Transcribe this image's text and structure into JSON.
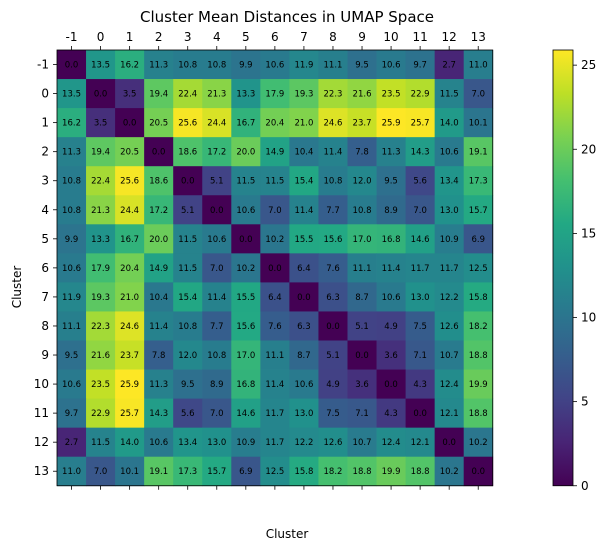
{
  "chart_data": {
    "type": "heatmap",
    "title": "Cluster Mean Distances in UMAP Space",
    "xlabel": "Cluster",
    "ylabel": "Cluster",
    "categories": [
      "-1",
      "0",
      "1",
      "2",
      "3",
      "4",
      "5",
      "6",
      "7",
      "8",
      "9",
      "10",
      "11",
      "12",
      "13"
    ],
    "values": [
      [
        0.0,
        13.5,
        16.2,
        11.3,
        10.8,
        10.8,
        9.9,
        10.6,
        11.9,
        11.1,
        9.5,
        10.6,
        9.7,
        2.7,
        11.0
      ],
      [
        13.5,
        0.0,
        3.5,
        19.4,
        22.4,
        21.3,
        13.3,
        17.9,
        19.3,
        22.3,
        21.6,
        23.5,
        22.9,
        11.5,
        7.0
      ],
      [
        16.2,
        3.5,
        0.0,
        20.5,
        25.6,
        24.4,
        16.7,
        20.4,
        21.0,
        24.6,
        23.7,
        25.9,
        25.7,
        14.0,
        10.1
      ],
      [
        11.3,
        19.4,
        20.5,
        0.0,
        18.6,
        17.2,
        20.0,
        14.9,
        10.4,
        11.4,
        7.8,
        11.3,
        14.3,
        10.6,
        19.1
      ],
      [
        10.8,
        22.4,
        25.6,
        18.6,
        0.0,
        5.1,
        11.5,
        11.5,
        15.4,
        10.8,
        12.0,
        9.5,
        5.6,
        13.4,
        17.3
      ],
      [
        10.8,
        21.3,
        24.4,
        17.2,
        5.1,
        0.0,
        10.6,
        7.0,
        11.4,
        7.7,
        10.8,
        8.9,
        7.0,
        13.0,
        15.7
      ],
      [
        9.9,
        13.3,
        16.7,
        20.0,
        11.5,
        10.6,
        0.0,
        10.2,
        15.5,
        15.6,
        17.0,
        16.8,
        14.6,
        10.9,
        6.9
      ],
      [
        10.6,
        17.9,
        20.4,
        14.9,
        11.5,
        7.0,
        10.2,
        0.0,
        6.4,
        7.6,
        11.1,
        11.4,
        11.7,
        11.7,
        12.5
      ],
      [
        11.9,
        19.3,
        21.0,
        10.4,
        15.4,
        11.4,
        15.5,
        6.4,
        0.0,
        6.3,
        8.7,
        10.6,
        13.0,
        12.2,
        15.8
      ],
      [
        11.1,
        22.3,
        24.6,
        11.4,
        10.8,
        7.7,
        15.6,
        7.6,
        6.3,
        0.0,
        5.1,
        4.9,
        7.5,
        12.6,
        18.2
      ],
      [
        9.5,
        21.6,
        23.7,
        7.8,
        12.0,
        10.8,
        17.0,
        11.1,
        8.7,
        5.1,
        0.0,
        3.6,
        7.1,
        10.7,
        18.8
      ],
      [
        10.6,
        23.5,
        25.9,
        11.3,
        9.5,
        8.9,
        16.8,
        11.4,
        10.6,
        4.9,
        3.6,
        0.0,
        4.3,
        12.4,
        19.9
      ],
      [
        9.7,
        22.9,
        25.7,
        14.3,
        5.6,
        7.0,
        14.6,
        11.7,
        13.0,
        7.5,
        7.1,
        4.3,
        0.0,
        12.1,
        18.8
      ],
      [
        2.7,
        11.5,
        14.0,
        10.6,
        13.4,
        13.0,
        10.9,
        11.7,
        12.2,
        12.6,
        10.7,
        12.4,
        12.1,
        0.0,
        10.2
      ],
      [
        11.0,
        7.0,
        10.1,
        19.1,
        17.3,
        15.7,
        6.9,
        12.5,
        15.8,
        18.2,
        18.8,
        19.9,
        18.8,
        10.2,
        0.0
      ]
    ],
    "colormap": "viridis",
    "colorbar": {
      "ticks": [
        0,
        5,
        10,
        15,
        20,
        25
      ],
      "range": [
        0,
        25.9
      ]
    }
  }
}
